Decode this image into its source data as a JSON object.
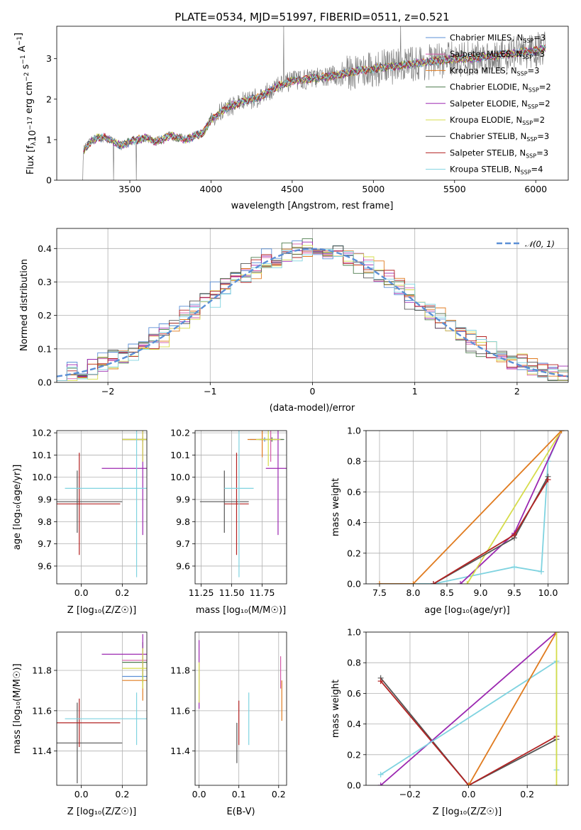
{
  "title": "PLATE=0534, MJD=51997, FIBERID=0511, z=0.521",
  "colors": {
    "Chabrier MILES": "#5b8fd6",
    "Salpeter MILES": "#d55aa8",
    "Kroupa MILES": "#e07b1f",
    "Chabrier ELODIE": "#4f7d4f",
    "Salpeter ELODIE": "#9b27b0",
    "Kroupa ELODIE": "#d6dc4a",
    "Chabrier STELIB": "#555555",
    "Salpeter STELIB": "#b22222",
    "Kroupa STELIB": "#7fd3e0",
    "data": "#808080",
    "normal": "#5b8fd6"
  },
  "chart_data": [
    {
      "type": "line",
      "id": "spectrum",
      "xlabel": "wavelength [Angstrom, rest frame]",
      "ylabel": "Flux [f$_\\lambda$10$^{-17}$ erg cm$^{-2}$ s$^{-1}$ A$^{-1}$]",
      "xlim": [
        3050,
        6200
      ],
      "ylim": [
        0,
        3.8
      ],
      "xticks": [
        3500,
        4000,
        4500,
        5000,
        5500,
        6000
      ],
      "yticks": [
        0,
        1,
        2,
        3
      ],
      "legend_position": "upper-right",
      "legend": [
        {
          "name": "Chabrier MILES",
          "sub": "SSP",
          "n": "3"
        },
        {
          "name": "Salpeter MILES",
          "sub": "SSP",
          "n": "3"
        },
        {
          "name": "Kroupa MILES",
          "sub": "SSP",
          "n": "3"
        },
        {
          "name": "Chabrier ELODIE",
          "sub": "SSP",
          "n": "2"
        },
        {
          "name": "Salpeter ELODIE",
          "sub": "SSP",
          "n": "2"
        },
        {
          "name": "Kroupa ELODIE",
          "sub": "SSP",
          "n": "2"
        },
        {
          "name": "Chabrier STELIB",
          "sub": "SSP",
          "n": "3"
        },
        {
          "name": "Salpeter STELIB",
          "sub": "SSP",
          "n": "3"
        },
        {
          "name": "Kroupa STELIB",
          "sub": "SSP",
          "n": "4"
        }
      ],
      "continuum": [
        [
          3210,
          0.0
        ],
        [
          3215,
          0.75
        ],
        [
          3240,
          0.85
        ],
        [
          3260,
          0.95
        ],
        [
          3300,
          1.05
        ],
        [
          3350,
          1.05
        ],
        [
          3400,
          0.95
        ],
        [
          3450,
          0.85
        ],
        [
          3500,
          0.95
        ],
        [
          3550,
          1.0
        ],
        [
          3600,
          1.05
        ],
        [
          3650,
          0.95
        ],
        [
          3700,
          1.0
        ],
        [
          3750,
          1.1
        ],
        [
          3800,
          1.05
        ],
        [
          3850,
          1.0
        ],
        [
          3900,
          1.1
        ],
        [
          3950,
          1.15
        ],
        [
          4000,
          1.5
        ],
        [
          4100,
          1.8
        ],
        [
          4200,
          1.95
        ],
        [
          4300,
          2.05
        ],
        [
          4400,
          2.3
        ],
        [
          4500,
          2.45
        ],
        [
          4600,
          2.5
        ],
        [
          4700,
          2.55
        ],
        [
          4800,
          2.6
        ],
        [
          4900,
          2.7
        ],
        [
          5000,
          2.75
        ],
        [
          5100,
          2.8
        ],
        [
          5200,
          2.85
        ],
        [
          5300,
          2.9
        ],
        [
          5400,
          2.95
        ],
        [
          5500,
          3.0
        ],
        [
          5600,
          3.0
        ],
        [
          5700,
          3.05
        ],
        [
          5800,
          3.1
        ],
        [
          5900,
          3.15
        ],
        [
          6000,
          3.2
        ],
        [
          6060,
          3.25
        ]
      ]
    },
    {
      "type": "step",
      "id": "residuals",
      "xlabel": "(data-model)/error",
      "ylabel": "Normed distribution",
      "xlim": [
        -2.5,
        2.5
      ],
      "ylim": [
        0,
        0.46
      ],
      "xticks": [
        -2,
        -1,
        0,
        1,
        2
      ],
      "yticks": [
        0.0,
        0.1,
        0.2,
        0.3,
        0.4
      ],
      "legend_position": "upper-right",
      "legend": [
        {
          "name": "𝒩(0, 1)"
        }
      ]
    },
    {
      "type": "errorbar",
      "id": "age-vs-Z",
      "xlabel": "Z [log₁₀(Z/Z☉)]",
      "ylabel": "age  [log₁₀(age/yr)]",
      "xlim": [
        -0.12,
        0.32
      ],
      "ylim": [
        9.52,
        10.21
      ],
      "xticks": [
        0.0,
        0.2
      ],
      "yticks": [
        9.6,
        9.7,
        9.8,
        9.9,
        10.0,
        10.1,
        10.2
      ],
      "points": [
        {
          "model": "Chabrier MILES",
          "x": 0.3,
          "xerr": 0.1,
          "y": 10.17,
          "yerr": 0.01
        },
        {
          "model": "Salpeter MILES",
          "x": 0.3,
          "xerr": 0.1,
          "y": 10.17,
          "yerr": 0.01
        },
        {
          "model": "Kroupa MILES",
          "x": 0.3,
          "xerr": 0.1,
          "y": 10.17,
          "yerr": 0.01
        },
        {
          "model": "Chabrier ELODIE",
          "x": 0.3,
          "xerr": 0.1,
          "y": 10.17,
          "yerr": 0.01
        },
        {
          "model": "Salpeter ELODIE",
          "x": 0.3,
          "xerr": 0.2,
          "y": 10.04,
          "yerr": 0.3
        },
        {
          "model": "Kroupa ELODIE",
          "x": 0.3,
          "xerr": 0.1,
          "y": 10.17,
          "yerr": 0.1
        },
        {
          "model": "Chabrier STELIB",
          "x": -0.02,
          "xerr": 0.22,
          "y": 9.89,
          "yerr": 0.14
        },
        {
          "model": "Salpeter STELIB",
          "x": -0.01,
          "xerr": 0.2,
          "y": 9.88,
          "yerr": 0.23
        },
        {
          "model": "Kroupa STELIB",
          "x": 0.27,
          "xerr": 0.35,
          "y": 9.95,
          "yerr": 0.4
        }
      ]
    },
    {
      "type": "errorbar",
      "id": "age-vs-mass",
      "xlabel": "mass [log₁₀(M/M☉)]",
      "xlim": [
        11.2,
        11.95
      ],
      "ylim": [
        9.52,
        10.21
      ],
      "xticks": [
        11.25,
        11.5,
        11.75
      ],
      "yticks": [
        9.6,
        9.7,
        9.8,
        9.9,
        10.0,
        10.1,
        10.2
      ],
      "points": [
        {
          "model": "Chabrier MILES",
          "x": 11.77,
          "xerr": 0.12,
          "y": 10.17,
          "yerr": 0.01
        },
        {
          "model": "Salpeter MILES",
          "x": 11.82,
          "xerr": 0.1,
          "y": 10.17,
          "yerr": 0.1
        },
        {
          "model": "Kroupa MILES",
          "x": 11.75,
          "xerr": 0.12,
          "y": 10.17,
          "yerr": 0.08
        },
        {
          "model": "Chabrier ELODIE",
          "x": 11.83,
          "xerr": 0.1,
          "y": 10.17,
          "yerr": 0.01
        },
        {
          "model": "Salpeter ELODIE",
          "x": 11.88,
          "xerr": 0.1,
          "y": 10.04,
          "yerr": 0.3
        },
        {
          "model": "Kroupa ELODIE",
          "x": 11.8,
          "xerr": 0.1,
          "y": 10.17,
          "yerr": 0.12
        },
        {
          "model": "Chabrier STELIB",
          "x": 11.44,
          "xerr": 0.2,
          "y": 9.89,
          "yerr": 0.14
        },
        {
          "model": "Salpeter STELIB",
          "x": 11.54,
          "xerr": 0.1,
          "y": 9.88,
          "yerr": 0.23
        },
        {
          "model": "Kroupa STELIB",
          "x": 11.56,
          "xerr": 0.12,
          "y": 9.95,
          "yerr": 0.4
        }
      ]
    },
    {
      "type": "line",
      "id": "mass-weight-vs-age",
      "xlabel": "age  [log₁₀(age/yr)]",
      "ylabel": "mass weight",
      "xlim": [
        7.3,
        10.3
      ],
      "ylim": [
        0,
        1.0
      ],
      "xticks": [
        7.5,
        8.0,
        8.5,
        9.0,
        9.5,
        10.0
      ],
      "yticks": [
        0.0,
        0.2,
        0.4,
        0.6,
        0.8,
        1.0
      ],
      "series": [
        {
          "model": "Kroupa STELIB",
          "x": [
            7.5,
            8.3,
            9.5,
            9.9,
            10.0,
            10.2
          ],
          "y": [
            0.0,
            0.0,
            0.11,
            0.08,
            0.8,
            1.0
          ]
        },
        {
          "model": "Salpeter ELODIE",
          "x": [
            8.7,
            9.5,
            10.2
          ],
          "y": [
            0.0,
            0.33,
            1.0
          ]
        },
        {
          "model": "Kroupa ELODIE",
          "x": [
            8.8,
            10.2
          ],
          "y": [
            0.0,
            1.0
          ]
        },
        {
          "model": "Kroupa MILES",
          "x": [
            7.5,
            8.0,
            10.2
          ],
          "y": [
            0.0,
            0.0,
            1.0
          ]
        },
        {
          "model": "Chabrier STELIB",
          "x": [
            8.3,
            9.5,
            10.0
          ],
          "y": [
            0.0,
            0.3,
            0.7
          ]
        },
        {
          "model": "Salpeter STELIB",
          "x": [
            8.3,
            9.5,
            10.0
          ],
          "y": [
            0.0,
            0.32,
            0.68
          ]
        }
      ]
    },
    {
      "type": "errorbar",
      "id": "mass-vs-Z",
      "xlabel": "Z [log₁₀(Z/Z☉)]",
      "ylabel": "mass [log₁₀(M/M☉)]",
      "xlim": [
        -0.12,
        0.32
      ],
      "ylim": [
        11.23,
        11.99
      ],
      "xticks": [
        0.0,
        0.2
      ],
      "yticks": [
        11.4,
        11.6,
        11.8
      ],
      "points": [
        {
          "model": "Chabrier MILES",
          "x": 0.3,
          "xerr": 0.1,
          "y": 11.77,
          "yerr": 0.02
        },
        {
          "model": "Salpeter MILES",
          "x": 0.3,
          "xerr": 0.1,
          "y": 11.85,
          "yerr": 0.01
        },
        {
          "model": "Kroupa MILES",
          "x": 0.3,
          "xerr": 0.1,
          "y": 11.75,
          "yerr": 0.1
        },
        {
          "model": "Chabrier ELODIE",
          "x": 0.3,
          "xerr": 0.1,
          "y": 11.84,
          "yerr": 0.1
        },
        {
          "model": "Salpeter ELODIE",
          "x": 0.3,
          "xerr": 0.2,
          "y": 11.88,
          "yerr": 0.1
        },
        {
          "model": "Kroupa ELODIE",
          "x": 0.3,
          "xerr": 0.1,
          "y": 11.81,
          "yerr": 0.1
        },
        {
          "model": "Chabrier STELIB",
          "x": -0.02,
          "xerr": 0.22,
          "y": 11.44,
          "yerr": 0.2
        },
        {
          "model": "Salpeter STELIB",
          "x": -0.01,
          "xerr": 0.2,
          "y": 11.54,
          "yerr": 0.12
        },
        {
          "model": "Kroupa STELIB",
          "x": 0.27,
          "xerr": 0.35,
          "y": 11.56,
          "yerr": 0.13
        }
      ]
    },
    {
      "type": "errorbar",
      "id": "mass-vs-ebv",
      "xlabel": "E(B-V)",
      "xlim": [
        -0.01,
        0.22
      ],
      "ylim": [
        11.23,
        11.99
      ],
      "xticks": [
        0.0,
        0.1,
        0.2
      ],
      "yticks": [
        11.4,
        11.6,
        11.8
      ],
      "points": [
        {
          "model": "Salpeter ELODIE",
          "x": 0.0,
          "y": 11.78,
          "yerr": 0.17
        },
        {
          "model": "Kroupa ELODIE",
          "x": 0.0,
          "y": 11.74,
          "yerr": 0.1
        },
        {
          "model": "Chabrier STELIB",
          "x": 0.095,
          "y": 11.44,
          "yerr": 0.1
        },
        {
          "model": "Salpeter STELIB",
          "x": 0.1,
          "y": 11.54,
          "yerr": 0.11
        },
        {
          "model": "Kroupa STELIB",
          "x": 0.125,
          "y": 11.56,
          "yerr": 0.13
        },
        {
          "model": "Salpeter MILES",
          "x": 0.205,
          "y": 11.79,
          "yerr": 0.08
        },
        {
          "model": "Kroupa MILES",
          "x": 0.208,
          "y": 11.65,
          "yerr": 0.1
        }
      ]
    },
    {
      "type": "line",
      "id": "mass-weight-vs-Z",
      "xlabel": "Z [log₁₀(Z/Z☉)]",
      "ylabel": "mass weight",
      "xlim": [
        -0.35,
        0.34
      ],
      "ylim": [
        0,
        1.0
      ],
      "xticks": [
        -0.2,
        0.0,
        0.2
      ],
      "yticks": [
        0.0,
        0.2,
        0.4,
        0.6,
        0.8,
        1.0
      ],
      "series": [
        {
          "model": "Chabrier STELIB",
          "x": [
            -0.3,
            0.0,
            0.3
          ],
          "y": [
            0.7,
            0.0,
            0.3
          ]
        },
        {
          "model": "Salpeter STELIB",
          "x": [
            -0.3,
            0.0,
            0.3
          ],
          "y": [
            0.68,
            0.0,
            0.32
          ]
        },
        {
          "model": "Salpeter ELODIE",
          "x": [
            -0.3,
            0.3
          ],
          "y": [
            0.0,
            1.0
          ]
        },
        {
          "model": "Kroupa STELIB",
          "x": [
            -0.3,
            0.3,
            0.3
          ],
          "y": [
            0.07,
            0.81,
            0.1
          ]
        },
        {
          "model": "Kroupa MILES",
          "x": [
            0.0,
            0.3
          ],
          "y": [
            0.0,
            1.0
          ]
        },
        {
          "model": "Kroupa ELODIE",
          "x": [
            0.3,
            0.3
          ],
          "y": [
            0.0,
            1.0
          ]
        }
      ]
    }
  ]
}
